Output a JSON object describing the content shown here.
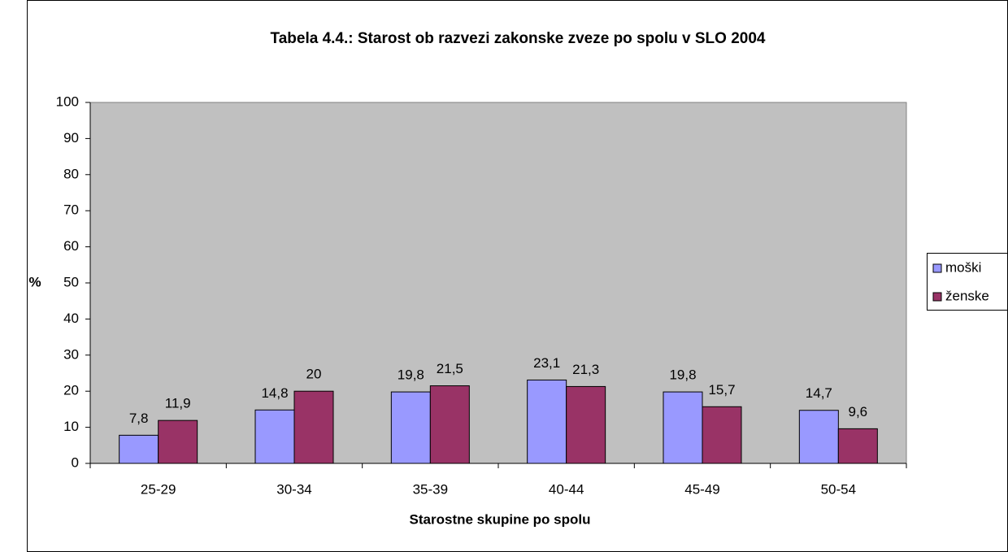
{
  "chart_data": {
    "type": "bar",
    "title": "Tabela 4.4.: Starost ob razvezi zakonske zveze po spolu v SLO 2004",
    "x_label": "Starostne skupine po spolu",
    "y_label": "%",
    "categories": [
      "25-29",
      "30-34",
      "35-39",
      "40-44",
      "45-49",
      "50-54"
    ],
    "series": [
      {
        "name": "moški",
        "color": "#9999ff",
        "values": [
          7.8,
          14.8,
          19.8,
          23.1,
          19.8,
          14.7
        ],
        "value_labels": [
          "7,8",
          "14,8",
          "19,8",
          "23,1",
          "19,8",
          "14,7"
        ]
      },
      {
        "name": "ženske",
        "color": "#993366",
        "values": [
          11.9,
          20,
          21.5,
          21.3,
          15.7,
          9.6
        ],
        "value_labels": [
          "11,9",
          "20",
          "21,5",
          "21,3",
          "15,7",
          "9,6"
        ]
      }
    ],
    "ylim": [
      0,
      100
    ],
    "yticks": [
      0,
      10,
      20,
      30,
      40,
      50,
      60,
      70,
      80,
      90,
      100
    ],
    "grid": false,
    "legend": "right"
  }
}
